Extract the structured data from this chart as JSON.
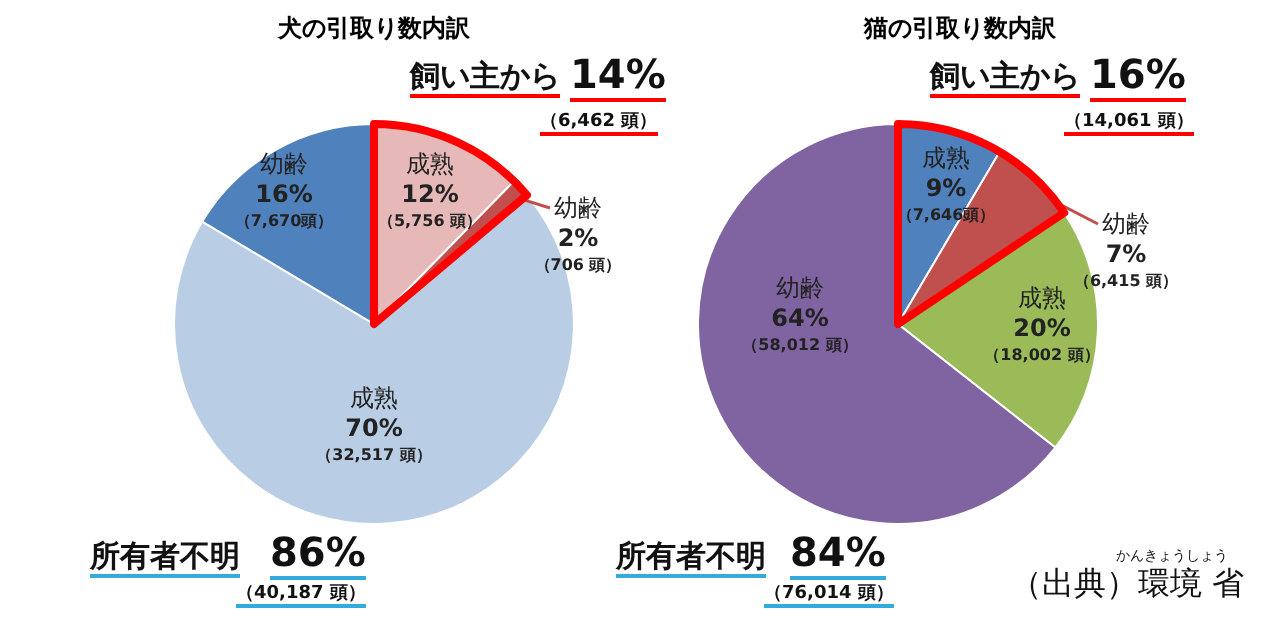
{
  "chart_data": [
    {
      "type": "pie",
      "title": "犬の引取り数内訳",
      "categories": [
        "成熟",
        "幼齢",
        "成熟",
        "幼齢"
      ],
      "values": [
        5756,
        706,
        32517,
        7670
      ],
      "colors": [
        "#e6b9b8",
        "#c0504d",
        "#b9cde5",
        "#4f81bd"
      ],
      "value_labels": [
        "12%\n（5,756 頭）",
        "2%\n（706 頭）",
        "70%\n（32,517 頭）",
        "16%\n（7,670頭）"
      ],
      "annotations": [
        "飼い主から",
        "14%",
        "（6,462 頭）",
        "所有者不明",
        "86%",
        "（40,187 頭）"
      ]
    },
    {
      "type": "pie",
      "title": "猫の引取り数内訳",
      "categories": [
        "成熟",
        "幼齢",
        "成熟",
        "幼齢"
      ],
      "values": [
        7646,
        6415,
        18002,
        58012
      ],
      "colors": [
        "#4f81bd",
        "#c0504d",
        "#9bbb59",
        "#8064a2"
      ],
      "value_labels": [
        "9%\n（7,646頭）",
        "7%\n（6,415 頭）",
        "20%\n（18,002 頭）",
        "64%\n（58,012 頭）"
      ],
      "annotations": [
        "飼い主から",
        "16%",
        "（14,061 頭）",
        "所有者不明",
        "84%",
        "（76,014 頭）",
        "（出典）環境 省",
        "かんきょうしょう"
      ]
    }
  ]
}
